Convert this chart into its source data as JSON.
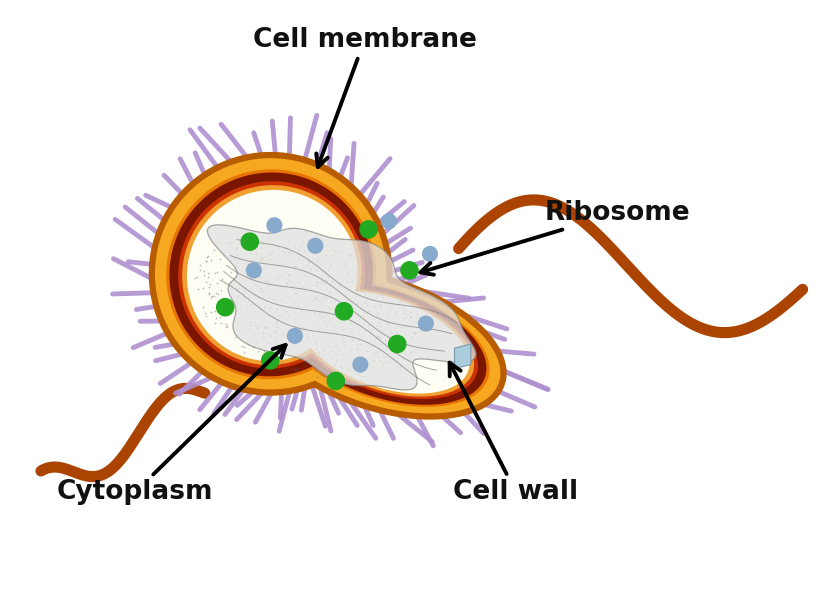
{
  "labels": {
    "cell_membrane": "Cell membrane",
    "ribosome": "Ribosome",
    "cytoplasm": "Cytoplasm",
    "cell_wall": "Cell wall"
  },
  "colors": {
    "background": "#ffffff",
    "cell_wall_outer": "#b85c00",
    "cell_wall_fill": "#f5a820",
    "mem_dark": "#7a1500",
    "mem_mid": "#cc3300",
    "mem_orange": "#e87000",
    "cytoplasm_fill": "#fffef5",
    "nucleoid_fill": "#e0e0e0",
    "nucleoid_edge": "#888888",
    "pili_color": "#b090d0",
    "flagellum_color": "#aa4400",
    "ribosome_green": "#22aa22",
    "ribosome_gray": "#88aacc",
    "label_color": "#111111"
  },
  "figsize": [
    8.19,
    5.98
  ],
  "dpi": 100
}
